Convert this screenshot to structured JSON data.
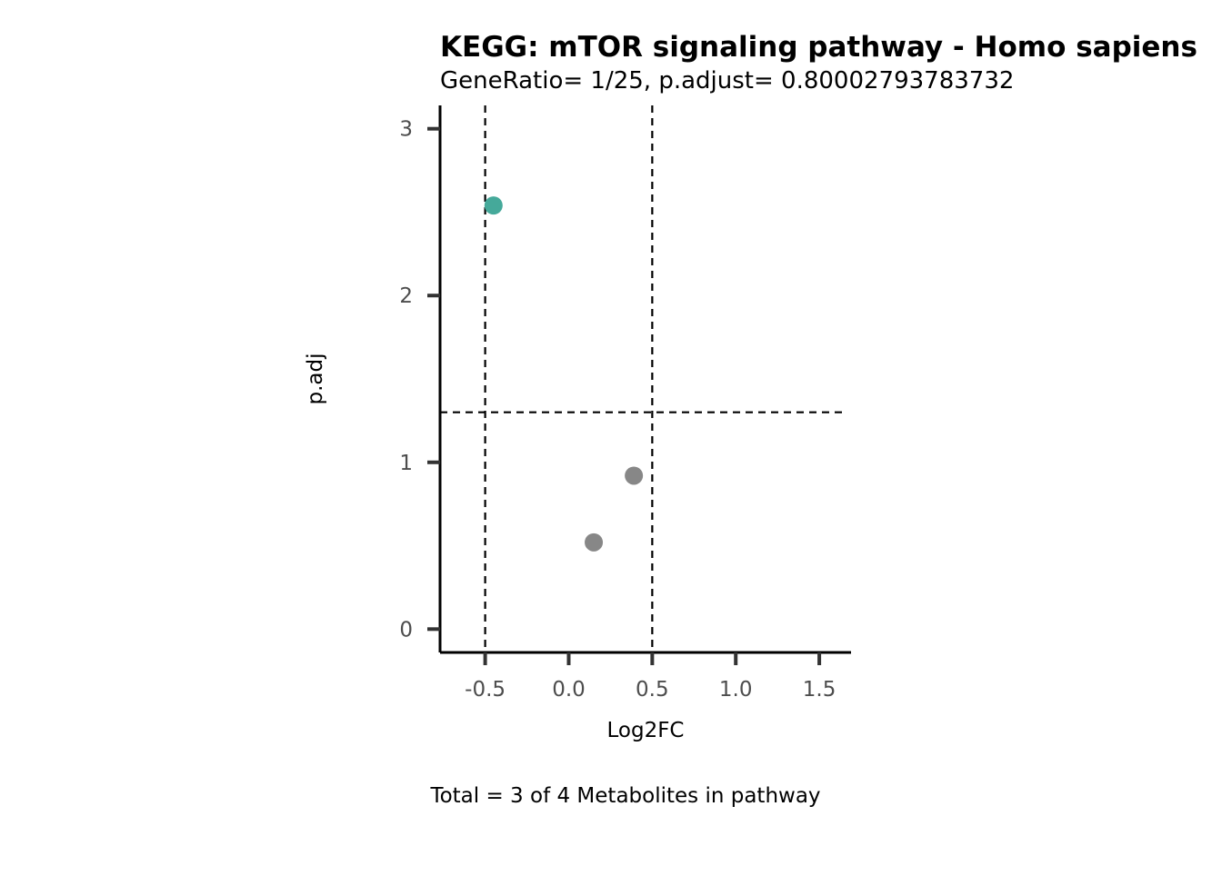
{
  "chart_data": {
    "type": "scatter",
    "title": "KEGG: mTOR signaling pathway - Homo sapiens",
    "subtitle": "GeneRatio= 1/25, p.adjust= 0.80002793783732",
    "xlabel": "Log2FC",
    "ylabel": "p.adj",
    "caption": "Total = 3 of 4 Metabolites in pathway",
    "xlim": [
      -0.77,
      1.69
    ],
    "ylim": [
      -0.14,
      3.14
    ],
    "x_ticks": [
      {
        "value": -0.5,
        "label": "-0.5"
      },
      {
        "value": 0.0,
        "label": "0.0"
      },
      {
        "value": 0.5,
        "label": "0.5"
      },
      {
        "value": 1.0,
        "label": "1.0"
      },
      {
        "value": 1.5,
        "label": "1.5"
      }
    ],
    "y_ticks": [
      {
        "value": 0,
        "label": "0"
      },
      {
        "value": 1,
        "label": "1"
      },
      {
        "value": 2,
        "label": "2"
      },
      {
        "value": 3,
        "label": "3"
      }
    ],
    "vlines": [
      -0.5,
      0.5
    ],
    "hlines": [
      1.3
    ],
    "grid": false,
    "legend": "none",
    "points": [
      {
        "x": -0.45,
        "y": 2.54,
        "color": "#45a99a"
      },
      {
        "x": 0.39,
        "y": 0.92,
        "color": "#878787"
      },
      {
        "x": 0.15,
        "y": 0.52,
        "color": "#878787"
      }
    ],
    "colors": {
      "significant": "#45a99a",
      "not_significant": "#878787",
      "axis": "#000000",
      "tick": "#333333",
      "tick_label": "#4d4d4d",
      "reference_line": "#000000"
    }
  }
}
